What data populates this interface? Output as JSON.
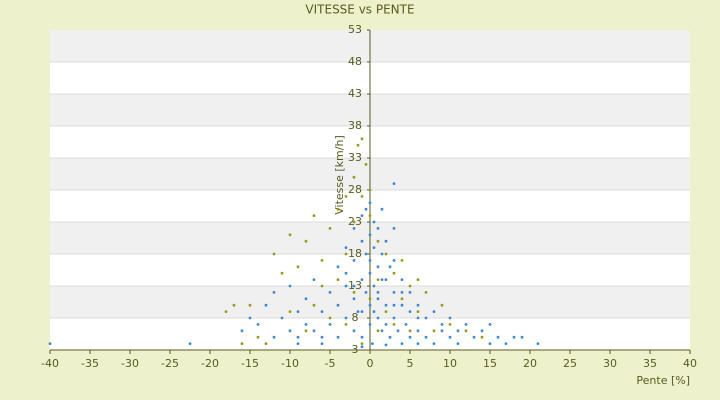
{
  "chart_data": {
    "type": "scatter",
    "title": "VITESSE vs PENTE",
    "x_label": "Pente [%]",
    "y_label": "Vitesse [km/h]",
    "xlim": [
      -40,
      40
    ],
    "ylim": [
      3,
      53
    ],
    "xticks": [
      -40,
      -35,
      -30,
      -25,
      -20,
      -15,
      -10,
      -5,
      0,
      5,
      10,
      15,
      20,
      25,
      30,
      35,
      40
    ],
    "yticks": [
      3,
      8,
      13,
      18,
      23,
      28,
      33,
      38,
      43,
      48,
      53
    ],
    "grid": true,
    "series": [
      {
        "color": "#3a8ad6",
        "x": [
          -40,
          -22.5,
          -16,
          -15,
          -14,
          -13,
          -12,
          -12,
          -11,
          -10,
          -10,
          -9,
          -9,
          -8,
          -8,
          -7,
          -7,
          -6,
          -6,
          -5,
          -5,
          -4,
          -4,
          -4,
          -3,
          -3,
          -3,
          -2,
          -2,
          -2,
          -2,
          -1.5,
          -1,
          -1,
          -1,
          -1,
          -0.5,
          -0.5,
          -0.5,
          0,
          0,
          0,
          0,
          0,
          0.3,
          0.5,
          0.5,
          0.5,
          1,
          1,
          1,
          1,
          1.5,
          1.5,
          1.5,
          2,
          2,
          2,
          2.5,
          2.5,
          3,
          3,
          3,
          3,
          3.5,
          4,
          4,
          4.5,
          5,
          5,
          5,
          6,
          6,
          7,
          7,
          8,
          8,
          9,
          9,
          10,
          10,
          11,
          11,
          12,
          13,
          14,
          15,
          15,
          16,
          17,
          18,
          19,
          21,
          -1,
          2,
          4,
          6,
          -6,
          -9,
          1,
          0,
          -1,
          2,
          3,
          -3,
          0.5,
          1.5,
          -2,
          4,
          3,
          6
        ],
        "y": [
          4,
          4,
          6,
          8,
          7,
          10,
          12,
          5,
          8,
          6,
          13,
          9,
          5,
          11,
          7,
          6,
          14,
          9,
          5,
          12,
          7,
          10,
          16,
          5,
          8,
          13,
          19,
          6,
          11,
          17,
          22,
          9,
          14,
          20,
          24,
          5,
          12,
          18,
          25,
          7,
          10,
          15,
          21,
          26,
          4,
          13,
          19,
          23,
          8,
          12,
          16,
          22,
          6,
          18,
          25,
          10,
          14,
          20,
          5,
          16,
          8,
          12,
          29,
          22,
          6,
          10,
          14,
          7,
          5,
          9,
          12,
          6,
          10,
          5,
          8,
          4,
          9,
          6,
          7,
          5,
          8,
          4,
          6,
          7,
          5,
          6,
          4,
          7,
          5,
          4,
          5,
          5,
          4,
          3.5,
          3.8,
          4,
          4,
          4,
          4,
          11,
          17,
          9,
          7,
          17,
          15,
          9,
          14,
          13,
          12,
          10,
          8
        ]
      },
      {
        "color": "#9a9a1a",
        "x": [
          -18,
          -17,
          -16,
          -15,
          -14,
          -12,
          -11,
          -10,
          -9,
          -8,
          -7,
          -7,
          -6,
          -5,
          -5,
          -4,
          -4,
          -3,
          -3,
          -3,
          -2,
          -2,
          -2,
          -1.5,
          -1,
          -1,
          -0.5,
          0,
          0,
          1,
          1,
          2,
          2,
          3,
          3,
          4,
          4,
          5,
          5,
          6,
          6,
          7,
          8,
          9,
          10,
          12,
          14,
          -13,
          -10,
          -8,
          -6,
          -1,
          0,
          1
        ],
        "y": [
          9,
          10,
          4,
          10,
          5,
          18,
          15,
          21,
          16,
          20,
          24,
          10,
          17,
          22,
          8,
          25,
          14,
          27,
          18,
          7,
          30,
          23,
          12,
          35,
          36,
          27,
          32,
          28,
          24,
          20,
          14,
          18,
          9,
          15,
          7,
          17,
          11,
          13,
          6,
          14,
          9,
          12,
          6,
          10,
          7,
          6,
          5,
          4,
          9,
          6,
          13,
          4,
          11,
          6
        ]
      }
    ]
  }
}
